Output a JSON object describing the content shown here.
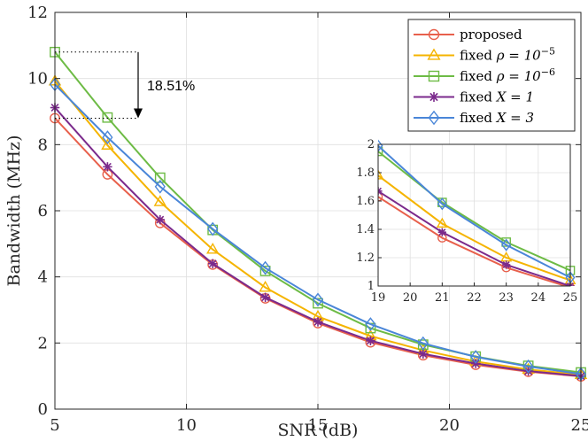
{
  "chart_data": {
    "type": "line",
    "xlabel": "SNR (dB)",
    "ylabel": "Bandwidth (MHz)",
    "xlim": [
      5,
      25
    ],
    "ylim": [
      0,
      12
    ],
    "xticks": [
      "5",
      "10",
      "15",
      "20",
      "25"
    ],
    "yticks": [
      "0",
      "2",
      "4",
      "6",
      "8",
      "10",
      "12"
    ],
    "grid": true,
    "legend_position": "top-right",
    "x": [
      5,
      7,
      9,
      11,
      13,
      15,
      17,
      19,
      21,
      23,
      25
    ],
    "series": [
      {
        "name": "proposed",
        "legend_prefix": "proposed",
        "legend_math": "",
        "color": "#e8604c",
        "marker": "circle",
        "values": [
          8.8,
          7.1,
          5.63,
          4.37,
          3.35,
          2.6,
          2.02,
          1.63,
          1.34,
          1.13,
          0.99
        ]
      },
      {
        "name": "fixed ρ = 10^-5",
        "legend_prefix": "fixed ",
        "legend_math": "ρ = 10",
        "legend_exp": "−5",
        "color": "#f5b400",
        "marker": "triangle",
        "values": [
          9.92,
          7.98,
          6.27,
          4.83,
          3.68,
          2.8,
          2.21,
          1.78,
          1.44,
          1.2,
          1.04
        ]
      },
      {
        "name": "fixed ρ = 10^-6",
        "legend_prefix": "fixed ",
        "legend_math": "ρ = 10",
        "legend_exp": "−6",
        "color": "#6dbb45",
        "marker": "square",
        "values": [
          10.8,
          8.82,
          7.0,
          5.42,
          4.18,
          3.2,
          2.45,
          1.95,
          1.59,
          1.31,
          1.11
        ]
      },
      {
        "name": "fixed X = 1",
        "legend_prefix": "fixed ",
        "legend_math": "X = 1",
        "color": "#7b2a8c",
        "marker": "asterisk",
        "values": [
          9.12,
          7.33,
          5.73,
          4.4,
          3.38,
          2.64,
          2.07,
          1.67,
          1.38,
          1.15,
          1.0
        ]
      },
      {
        "name": "fixed X = 3",
        "legend_prefix": "fixed ",
        "legend_math": "X = 3",
        "color": "#4a86d8",
        "marker": "diamond",
        "values": [
          9.82,
          8.22,
          6.73,
          5.45,
          4.27,
          3.31,
          2.57,
          1.99,
          1.58,
          1.29,
          1.06
        ]
      }
    ],
    "annotation": {
      "text": "18.51%",
      "from_value": 10.8,
      "to_value": 8.8
    },
    "inset": {
      "xlim": [
        19,
        25
      ],
      "ylim": [
        1,
        2
      ],
      "x": [
        19,
        21,
        23,
        25
      ],
      "xticks": [
        "19",
        "20",
        "21",
        "22",
        "23",
        "24",
        "25"
      ],
      "yticks": [
        "1",
        "1.2",
        "1.4",
        "1.6",
        "1.8",
        "2"
      ]
    }
  }
}
